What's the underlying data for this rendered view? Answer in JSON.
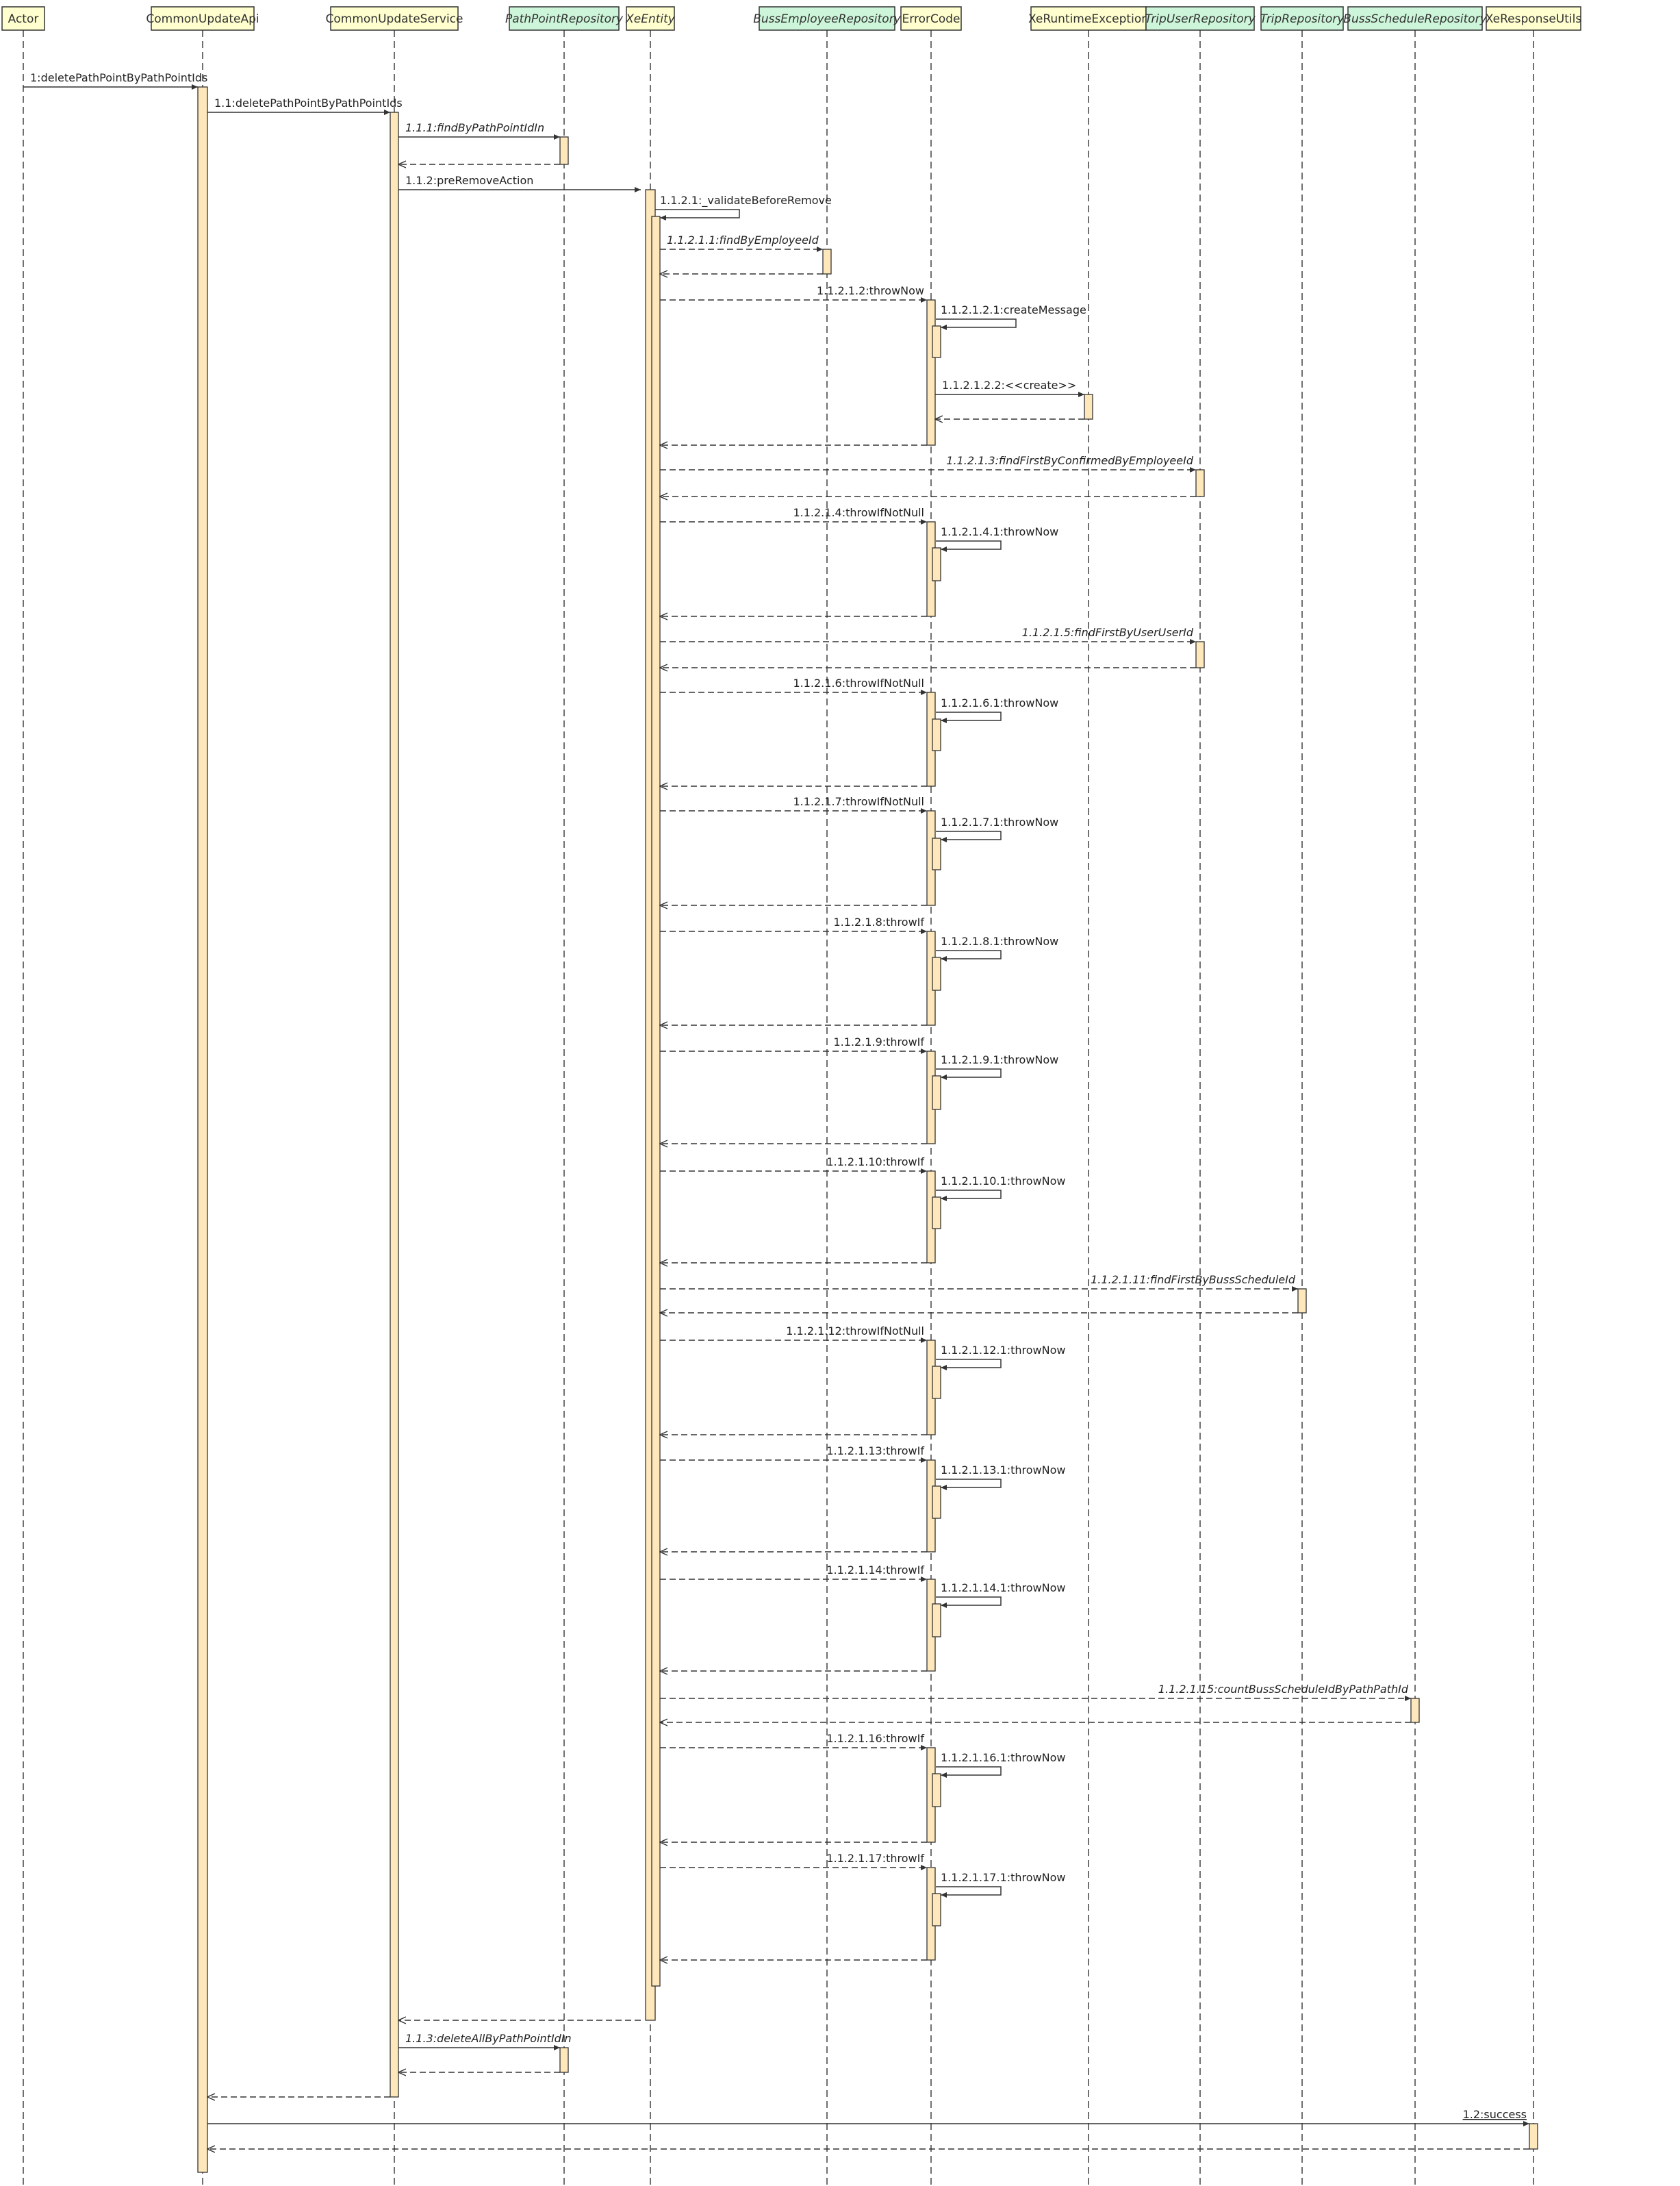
{
  "colors": {
    "participant_fill": "#fefece",
    "participant_stroke": "#333333",
    "repo_fill": "#ccf5d9",
    "activation_fill": "#fde7bb",
    "line": "#333333",
    "background": "#ffffff"
  },
  "participants": [
    {
      "id": "actor",
      "label": "Actor",
      "kind": "plain",
      "italic": false
    },
    {
      "id": "api",
      "label": "CommonUpdateApi",
      "kind": "plain",
      "italic": false
    },
    {
      "id": "svc",
      "label": "CommonUpdateService",
      "kind": "plain",
      "italic": false
    },
    {
      "id": "ppr",
      "label": "PathPointRepository",
      "kind": "repo",
      "italic": true
    },
    {
      "id": "xe",
      "label": "XeEntity",
      "kind": "plain",
      "italic": true
    },
    {
      "id": "ber",
      "label": "BussEmployeeRepository",
      "kind": "repo",
      "italic": true
    },
    {
      "id": "ec",
      "label": "ErrorCode",
      "kind": "plain",
      "italic": false
    },
    {
      "id": "xre",
      "label": "XeRuntimeException",
      "kind": "plain",
      "italic": false
    },
    {
      "id": "tur",
      "label": "TripUserRepository",
      "kind": "repo",
      "italic": true
    },
    {
      "id": "tr",
      "label": "TripRepository",
      "kind": "repo",
      "italic": true
    },
    {
      "id": "bsr",
      "label": "BussScheduleRepository",
      "kind": "repo",
      "italic": true
    },
    {
      "id": "xru",
      "label": "XeResponseUtils",
      "kind": "plain",
      "italic": false
    }
  ],
  "messages": [
    {
      "label": "1:deletePathPointByPathPointIds",
      "from": "actor",
      "to": "api",
      "style": "sync"
    },
    {
      "label": "1.1:deletePathPointByPathPointIds",
      "from": "api",
      "to": "svc",
      "style": "sync"
    },
    {
      "label": "1.1.1:findByPathPointIdIn",
      "from": "svc",
      "to": "ppr",
      "style": "sync",
      "italic": true
    },
    {
      "label": "",
      "from": "ppr",
      "to": "svc",
      "style": "return"
    },
    {
      "label": "1.1.2:preRemoveAction",
      "from": "svc",
      "to": "xe",
      "style": "sync"
    },
    {
      "label": "1.1.2.1:_validateBeforeRemove",
      "from": "xe",
      "to": "xe",
      "style": "self"
    },
    {
      "label": "1.1.2.1.1:findByEmployeeId",
      "from": "xe",
      "to": "ber",
      "style": "dashed",
      "italic": true
    },
    {
      "label": "",
      "from": "ber",
      "to": "xe",
      "style": "return"
    },
    {
      "label": "1.1.2.1.2:throwNow",
      "from": "xe",
      "to": "ec",
      "style": "dashed"
    },
    {
      "label": "1.1.2.1.2.1:createMessage",
      "from": "ec",
      "to": "ec",
      "style": "self"
    },
    {
      "label": "1.1.2.1.2.2:<<create>>",
      "from": "ec",
      "to": "xre",
      "style": "sync"
    },
    {
      "label": "",
      "from": "xre",
      "to": "ec",
      "style": "return"
    },
    {
      "label": "",
      "from": "ec",
      "to": "xe",
      "style": "return"
    },
    {
      "label": "1.1.2.1.3:findFirstByConfirmedByEmployeeId",
      "from": "xe",
      "to": "tur",
      "style": "dashed",
      "italic": true
    },
    {
      "label": "",
      "from": "tur",
      "to": "xe",
      "style": "return"
    },
    {
      "label": "1.1.2.1.4:throwIfNotNull",
      "from": "xe",
      "to": "ec",
      "style": "dashed"
    },
    {
      "label": "1.1.2.1.4.1:throwNow",
      "from": "ec",
      "to": "ec",
      "style": "self"
    },
    {
      "label": "",
      "from": "ec",
      "to": "xe",
      "style": "return"
    },
    {
      "label": "1.1.2.1.5:findFirstByUserUserId",
      "from": "xe",
      "to": "tur",
      "style": "dashed",
      "italic": true
    },
    {
      "label": "",
      "from": "tur",
      "to": "xe",
      "style": "return"
    },
    {
      "label": "1.1.2.1.6:throwIfNotNull",
      "from": "xe",
      "to": "ec",
      "style": "dashed"
    },
    {
      "label": "1.1.2.1.6.1:throwNow",
      "from": "ec",
      "to": "ec",
      "style": "self"
    },
    {
      "label": "",
      "from": "ec",
      "to": "xe",
      "style": "return"
    },
    {
      "label": "1.1.2.1.7:throwIfNotNull",
      "from": "xe",
      "to": "ec",
      "style": "dashed"
    },
    {
      "label": "1.1.2.1.7.1:throwNow",
      "from": "ec",
      "to": "ec",
      "style": "self"
    },
    {
      "label": "",
      "from": "ec",
      "to": "xe",
      "style": "return"
    },
    {
      "label": "1.1.2.1.8:throwIf",
      "from": "xe",
      "to": "ec",
      "style": "dashed"
    },
    {
      "label": "1.1.2.1.8.1:throwNow",
      "from": "ec",
      "to": "ec",
      "style": "self"
    },
    {
      "label": "",
      "from": "ec",
      "to": "xe",
      "style": "return"
    },
    {
      "label": "1.1.2.1.9:throwIf",
      "from": "xe",
      "to": "ec",
      "style": "dashed"
    },
    {
      "label": "1.1.2.1.9.1:throwNow",
      "from": "ec",
      "to": "ec",
      "style": "self"
    },
    {
      "label": "",
      "from": "ec",
      "to": "xe",
      "style": "return"
    },
    {
      "label": "1.1.2.1.10:throwIf",
      "from": "xe",
      "to": "ec",
      "style": "dashed"
    },
    {
      "label": "1.1.2.1.10.1:throwNow",
      "from": "ec",
      "to": "ec",
      "style": "self"
    },
    {
      "label": "",
      "from": "ec",
      "to": "xe",
      "style": "return"
    },
    {
      "label": "1.1.2.1.11:findFirstByBussScheduleId",
      "from": "xe",
      "to": "tr",
      "style": "dashed",
      "italic": true
    },
    {
      "label": "",
      "from": "tr",
      "to": "xe",
      "style": "return"
    },
    {
      "label": "1.1.2.1.12:throwIfNotNull",
      "from": "xe",
      "to": "ec",
      "style": "dashed"
    },
    {
      "label": "1.1.2.1.12.1:throwNow",
      "from": "ec",
      "to": "ec",
      "style": "self"
    },
    {
      "label": "",
      "from": "ec",
      "to": "xe",
      "style": "return"
    },
    {
      "label": "1.1.2.1.13:throwIf",
      "from": "xe",
      "to": "ec",
      "style": "dashed"
    },
    {
      "label": "1.1.2.1.13.1:throwNow",
      "from": "ec",
      "to": "ec",
      "style": "self"
    },
    {
      "label": "",
      "from": "ec",
      "to": "xe",
      "style": "return"
    },
    {
      "label": "1.1.2.1.14:throwIf",
      "from": "xe",
      "to": "ec",
      "style": "dashed"
    },
    {
      "label": "1.1.2.1.14.1:throwNow",
      "from": "ec",
      "to": "ec",
      "style": "self"
    },
    {
      "label": "",
      "from": "ec",
      "to": "xe",
      "style": "return"
    },
    {
      "label": "1.1.2.1.15:countBussScheduleIdByPathPathId",
      "from": "xe",
      "to": "bsr",
      "style": "dashed",
      "italic": true
    },
    {
      "label": "",
      "from": "bsr",
      "to": "xe",
      "style": "return"
    },
    {
      "label": "1.1.2.1.16:throwIf",
      "from": "xe",
      "to": "ec",
      "style": "dashed"
    },
    {
      "label": "1.1.2.1.16.1:throwNow",
      "from": "ec",
      "to": "ec",
      "style": "self"
    },
    {
      "label": "",
      "from": "ec",
      "to": "xe",
      "style": "return"
    },
    {
      "label": "1.1.2.1.17:throwIf",
      "from": "xe",
      "to": "ec",
      "style": "dashed"
    },
    {
      "label": "1.1.2.1.17.1:throwNow",
      "from": "ec",
      "to": "ec",
      "style": "self"
    },
    {
      "label": "",
      "from": "ec",
      "to": "xe",
      "style": "return"
    },
    {
      "label": "",
      "from": "xe",
      "to": "svc",
      "style": "return"
    },
    {
      "label": "1.1.3:deleteAllByPathPointIdIn",
      "from": "svc",
      "to": "ppr",
      "style": "sync",
      "italic": true
    },
    {
      "label": "",
      "from": "ppr",
      "to": "svc",
      "style": "return"
    },
    {
      "label": "",
      "from": "svc",
      "to": "api",
      "style": "return"
    },
    {
      "label": "1.2:success",
      "from": "api",
      "to": "xru",
      "style": "sync",
      "underline": true
    },
    {
      "label": "",
      "from": "xru",
      "to": "api",
      "style": "return"
    }
  ]
}
